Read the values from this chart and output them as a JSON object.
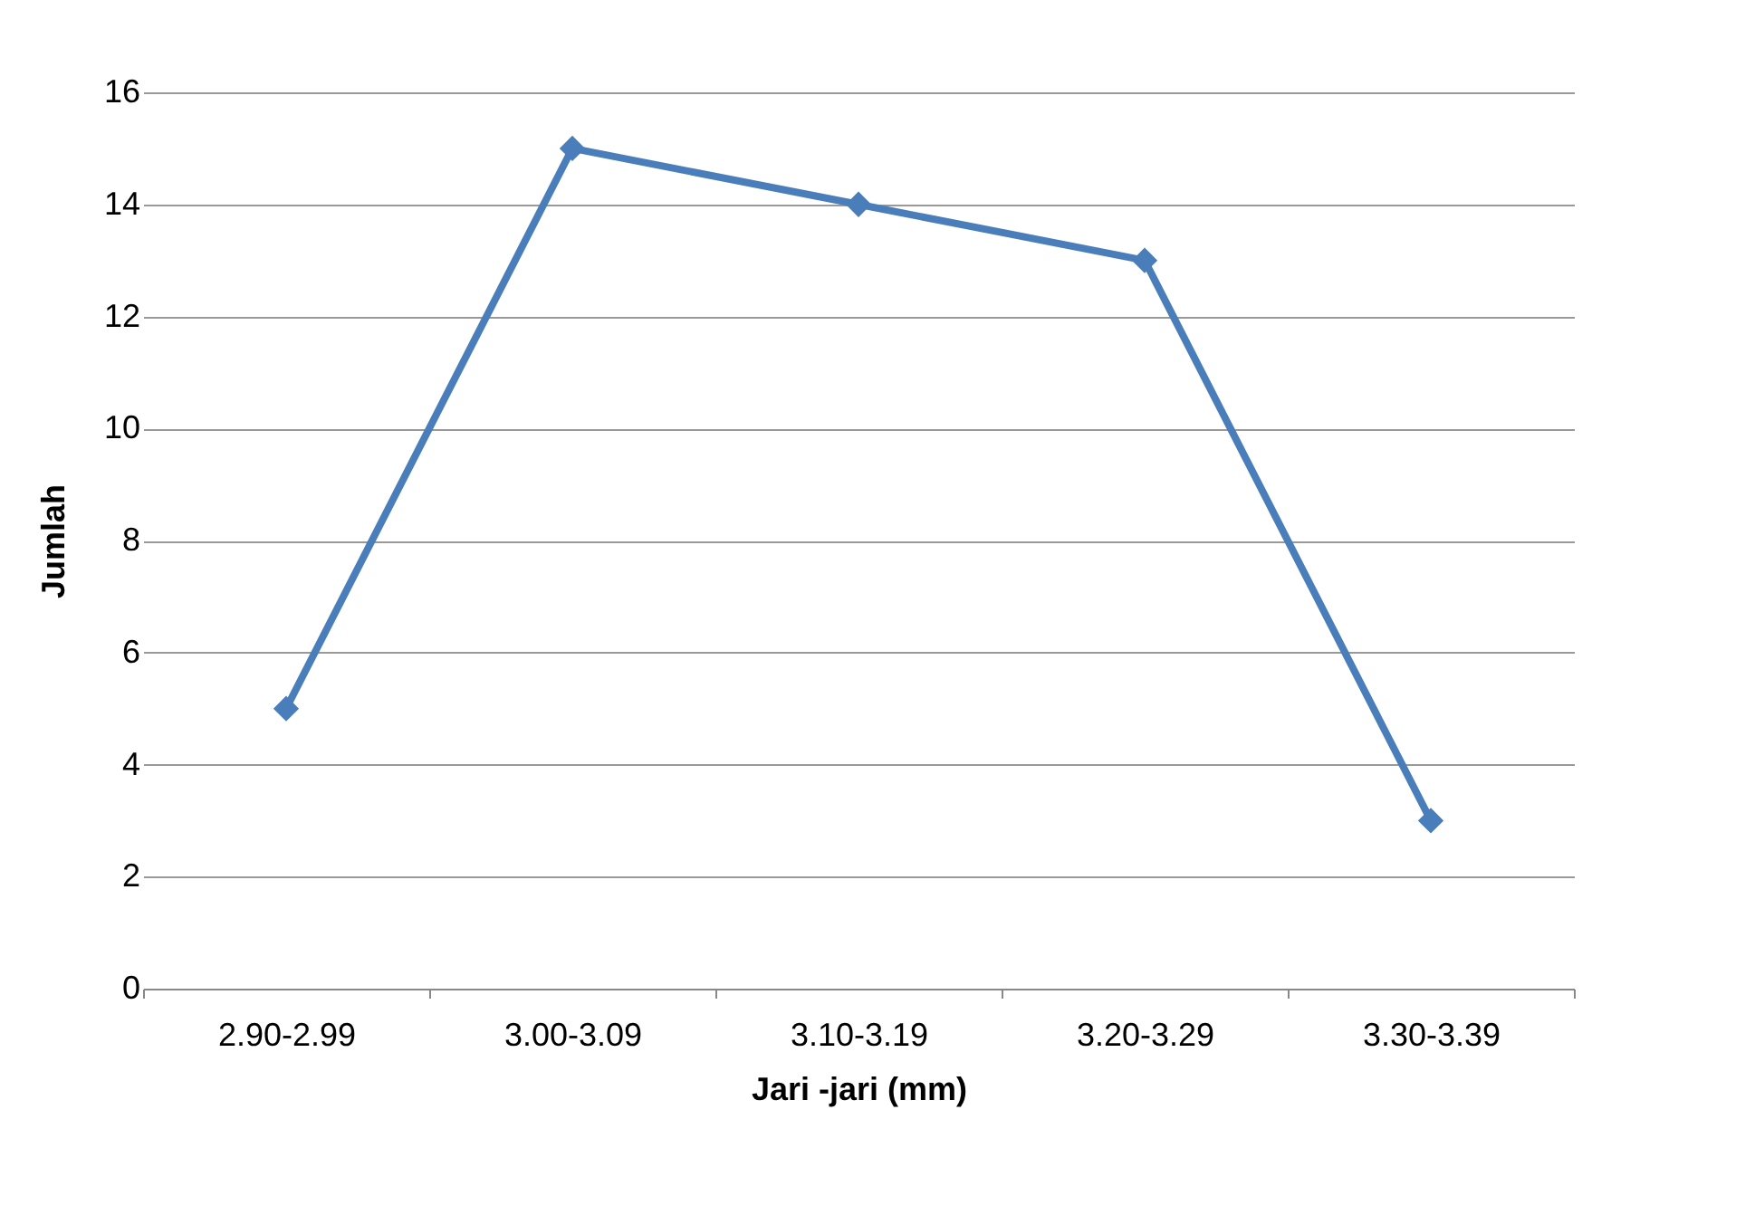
{
  "chart_data": {
    "type": "line",
    "xlabel": "Jari -jari (mm)",
    "ylabel": "Jumlah",
    "categories": [
      "2.90-2.99",
      "3.00-3.09",
      "3.10-3.19",
      "3.20-3.29",
      "3.30-3.39"
    ],
    "series": [
      {
        "color": "#4a7ebb",
        "values": [
          5,
          15,
          14,
          13,
          3
        ]
      }
    ],
    "ylim": [
      0,
      16
    ],
    "yticks": [
      0,
      2,
      4,
      6,
      8,
      10,
      12,
      14,
      16
    ],
    "grid": "y",
    "marker": "diamond",
    "line_style": "solid"
  }
}
